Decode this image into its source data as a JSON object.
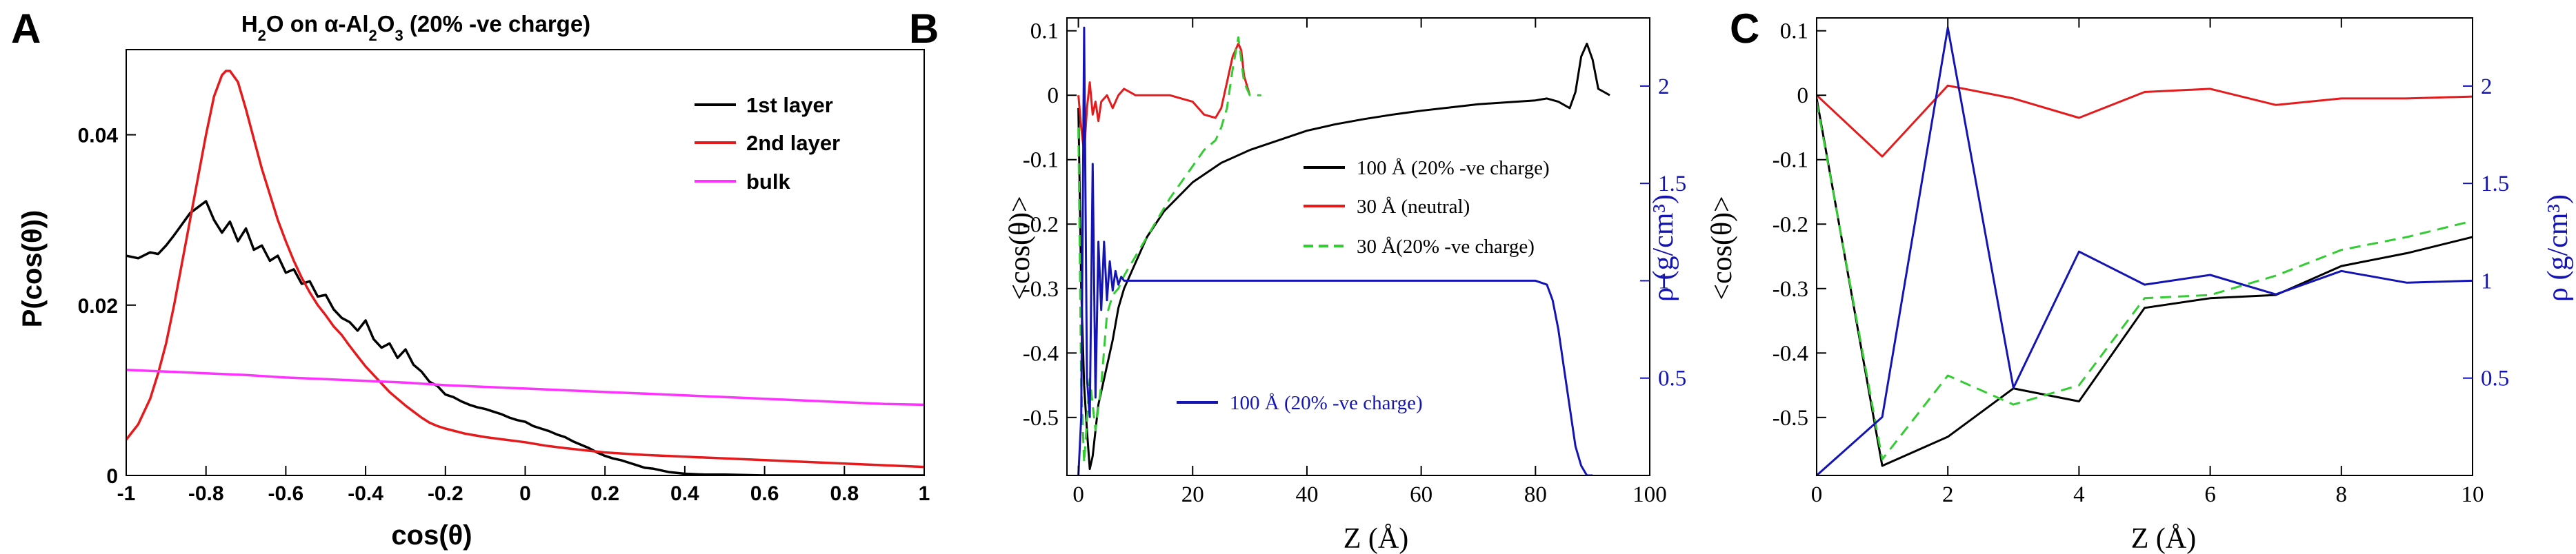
{
  "figure": {
    "panel_labels": [
      "A",
      "B",
      "C"
    ]
  },
  "colors": {
    "black": "#000000",
    "red": "#e41a1c",
    "magenta": "#ff33ff",
    "green": "#33cc33",
    "blue": "#1414b4"
  },
  "chart_data": [
    {
      "id": "A",
      "type": "line",
      "title_parts": [
        "H",
        "2",
        "O on ",
        "α",
        "-Al",
        "2",
        "O",
        "3",
        " (20% -ve charge)"
      ],
      "xlabel": "cos(θ)",
      "ylabel": "P(cos(θ))",
      "xlim": [
        -1,
        1
      ],
      "ylim": [
        0,
        0.05
      ],
      "xticks": [
        -1,
        -0.8,
        -0.6,
        -0.4,
        -0.2,
        0,
        0.2,
        0.4,
        0.6,
        0.8,
        1
      ],
      "xtick_labels": [
        "-1",
        "-0.8",
        "-0.6",
        "-0.4",
        "-0.2",
        "0",
        "0.2",
        "0.4",
        "0.6",
        "0.8",
        "1"
      ],
      "yticks": [
        0,
        0.02,
        0.04
      ],
      "ytick_labels": [
        "0",
        "0.02",
        "0.04"
      ],
      "legend_position": "top-right",
      "series": [
        {
          "name": "1st layer",
          "color": "#000000",
          "x": [
            -1,
            -0.97,
            -0.94,
            -0.92,
            -0.9,
            -0.88,
            -0.86,
            -0.84,
            -0.82,
            -0.8,
            -0.78,
            -0.76,
            -0.74,
            -0.72,
            -0.7,
            -0.68,
            -0.66,
            -0.64,
            -0.62,
            -0.6,
            -0.58,
            -0.56,
            -0.54,
            -0.52,
            -0.5,
            -0.48,
            -0.46,
            -0.44,
            -0.42,
            -0.4,
            -0.38,
            -0.36,
            -0.34,
            -0.32,
            -0.3,
            -0.28,
            -0.26,
            -0.24,
            -0.22,
            -0.2,
            -0.18,
            -0.16,
            -0.14,
            -0.12,
            -0.1,
            -0.08,
            -0.06,
            -0.04,
            -0.02,
            0,
            0.02,
            0.04,
            0.06,
            0.08,
            0.1,
            0.12,
            0.14,
            0.16,
            0.18,
            0.2,
            0.22,
            0.24,
            0.26,
            0.28,
            0.3,
            0.32,
            0.34,
            0.36,
            0.38,
            0.4,
            0.45,
            0.5,
            0.6,
            0.7,
            0.8,
            0.9,
            1.0
          ],
          "y": [
            0.0258,
            0.0255,
            0.0262,
            0.026,
            0.027,
            0.0282,
            0.0295,
            0.0308,
            0.0315,
            0.0322,
            0.03,
            0.0285,
            0.0298,
            0.0275,
            0.029,
            0.0265,
            0.027,
            0.0252,
            0.0258,
            0.0238,
            0.0242,
            0.0225,
            0.0228,
            0.021,
            0.0212,
            0.0195,
            0.0185,
            0.018,
            0.017,
            0.0182,
            0.016,
            0.015,
            0.0155,
            0.0138,
            0.0148,
            0.013,
            0.0122,
            0.011,
            0.0105,
            0.0095,
            0.0092,
            0.0087,
            0.0083,
            0.008,
            0.0078,
            0.0075,
            0.0072,
            0.0068,
            0.0065,
            0.0063,
            0.0058,
            0.0055,
            0.0052,
            0.0048,
            0.0045,
            0.004,
            0.0036,
            0.0032,
            0.0027,
            0.0023,
            0.002,
            0.0018,
            0.0015,
            0.0012,
            0.0009,
            0.0008,
            0.0006,
            0.0004,
            0.0003,
            0.0002,
            0.0001,
            0.0001,
            0.0,
            0.0,
            0.0,
            0.0,
            0.0
          ]
        },
        {
          "name": "2nd layer",
          "color": "#e41a1c",
          "x": [
            -1,
            -0.97,
            -0.94,
            -0.92,
            -0.9,
            -0.88,
            -0.86,
            -0.84,
            -0.82,
            -0.8,
            -0.78,
            -0.76,
            -0.75,
            -0.74,
            -0.72,
            -0.7,
            -0.68,
            -0.66,
            -0.64,
            -0.62,
            -0.6,
            -0.58,
            -0.56,
            -0.54,
            -0.52,
            -0.5,
            -0.48,
            -0.46,
            -0.44,
            -0.42,
            -0.4,
            -0.38,
            -0.36,
            -0.34,
            -0.32,
            -0.3,
            -0.28,
            -0.26,
            -0.24,
            -0.22,
            -0.2,
            -0.15,
            -0.1,
            -0.05,
            0,
            0.05,
            0.1,
            0.2,
            0.3,
            0.4,
            0.5,
            0.6,
            0.7,
            0.8,
            0.9,
            1.0
          ],
          "y": [
            0.0042,
            0.006,
            0.009,
            0.012,
            0.0155,
            0.02,
            0.025,
            0.03,
            0.035,
            0.04,
            0.0445,
            0.047,
            0.0475,
            0.0475,
            0.0462,
            0.043,
            0.0395,
            0.036,
            0.033,
            0.03,
            0.0275,
            0.0252,
            0.0232,
            0.0215,
            0.02,
            0.0188,
            0.0175,
            0.0165,
            0.0152,
            0.014,
            0.0128,
            0.0118,
            0.0108,
            0.0098,
            0.009,
            0.0082,
            0.0075,
            0.0068,
            0.0062,
            0.0058,
            0.0055,
            0.0049,
            0.0045,
            0.0042,
            0.0039,
            0.0035,
            0.0032,
            0.0027,
            0.0024,
            0.0022,
            0.002,
            0.0018,
            0.0016,
            0.0014,
            0.0012,
            0.001
          ]
        },
        {
          "name": "bulk",
          "color": "#ff33ff",
          "x": [
            -1,
            -0.9,
            -0.8,
            -0.7,
            -0.6,
            -0.5,
            -0.4,
            -0.3,
            -0.2,
            -0.1,
            0,
            0.1,
            0.2,
            0.3,
            0.4,
            0.5,
            0.6,
            0.7,
            0.8,
            0.9,
            1.0
          ],
          "y": [
            0.0124,
            0.0122,
            0.012,
            0.0118,
            0.0115,
            0.0113,
            0.0111,
            0.0109,
            0.0106,
            0.0104,
            0.0102,
            0.01,
            0.0098,
            0.0096,
            0.0094,
            0.0092,
            0.009,
            0.0088,
            0.0086,
            0.0084,
            0.0083
          ]
        }
      ]
    },
    {
      "id": "B",
      "type": "line",
      "xlabel": "Z (Å)",
      "ylabel": "<cos(θ)>",
      "ylabel_right": "ρ (g/cm³)",
      "xlim": [
        -2,
        100
      ],
      "ylim": [
        -0.59,
        0.12
      ],
      "ylim_right": [
        0.0,
        2.35
      ],
      "xticks": [
        0,
        20,
        40,
        60,
        80,
        100
      ],
      "xtick_labels": [
        "0",
        "20",
        "40",
        "60",
        "80",
        "100"
      ],
      "yticks": [
        0.1,
        0,
        -0.1,
        -0.2,
        -0.3,
        -0.4,
        -0.5
      ],
      "ytick_labels": [
        "0.1",
        "0",
        "-0.1",
        "-0.2",
        "-0.3",
        "-0.4",
        "-0.5"
      ],
      "yticks_right": [
        0.5,
        1,
        1.5,
        2
      ],
      "ytick_labels_right": [
        "0.5",
        "1",
        "1.5",
        "2"
      ],
      "legend": [
        "100 Å (20% -ve charge)",
        "30 Å (neutral)",
        "30 Å(20% -ve charge)"
      ],
      "legend_right": [
        "100 Å (20% -ve charge)"
      ],
      "series": [
        {
          "name": "100 Å (20% -ve charge)",
          "color": "#000000",
          "axis": "left",
          "x": [
            0,
            0.5,
            1,
            1.5,
            2,
            2.5,
            3,
            3.5,
            4,
            5,
            6,
            7,
            8,
            10,
            12,
            15,
            20,
            25,
            30,
            35,
            40,
            45,
            50,
            55,
            60,
            65,
            70,
            75,
            80,
            82,
            84,
            86,
            87,
            88,
            89,
            90,
            91,
            92,
            93
          ],
          "y": [
            -0.02,
            -0.3,
            -0.45,
            -0.52,
            -0.58,
            -0.56,
            -0.52,
            -0.48,
            -0.46,
            -0.42,
            -0.38,
            -0.33,
            -0.3,
            -0.26,
            -0.22,
            -0.18,
            -0.135,
            -0.105,
            -0.085,
            -0.07,
            -0.055,
            -0.045,
            -0.037,
            -0.03,
            -0.024,
            -0.019,
            -0.014,
            -0.011,
            -0.008,
            -0.005,
            -0.01,
            -0.02,
            0.005,
            0.06,
            0.08,
            0.055,
            0.01,
            0.005,
            0.0
          ]
        },
        {
          "name": "30 Å (neutral)",
          "color": "#e41a1c",
          "axis": "left",
          "x": [
            0,
            0.5,
            1,
            1.5,
            2,
            2.5,
            3,
            3.5,
            4,
            5,
            6,
            7,
            8,
            10,
            12,
            14,
            16,
            18,
            20,
            22,
            24,
            25,
            26,
            27,
            28,
            28.5,
            29,
            30
          ],
          "y": [
            0.0,
            -0.05,
            -0.09,
            -0.02,
            0.02,
            -0.03,
            -0.01,
            -0.04,
            -0.01,
            0.0,
            -0.02,
            0.0,
            0.01,
            0.0,
            0.0,
            0.0,
            0.0,
            -0.005,
            -0.01,
            -0.03,
            -0.035,
            -0.02,
            0.02,
            0.06,
            0.08,
            0.07,
            0.03,
            0.0
          ]
        },
        {
          "name": "30 Å(20% -ve charge)",
          "color": "#33cc33",
          "axis": "left",
          "dashed": true,
          "x": [
            0,
            0.5,
            1,
            2,
            3,
            4,
            5,
            6,
            7,
            8,
            10,
            12,
            14,
            16,
            18,
            20,
            22,
            24,
            25,
            26,
            27,
            28,
            29,
            30,
            31,
            32
          ],
          "y": [
            -0.05,
            -0.45,
            -0.57,
            -0.44,
            -0.52,
            -0.45,
            -0.34,
            -0.31,
            -0.3,
            -0.28,
            -0.25,
            -0.22,
            -0.19,
            -0.16,
            -0.135,
            -0.11,
            -0.085,
            -0.07,
            -0.05,
            -0.02,
            0.04,
            0.09,
            0.02,
            0.0,
            0.0,
            0.0
          ]
        },
        {
          "name": "100 Å (20% -ve charge) density",
          "color": "#1414b4",
          "axis": "right",
          "x": [
            0,
            0.5,
            1,
            1.5,
            2,
            2.5,
            3,
            3.5,
            4,
            4.5,
            5,
            5.5,
            6,
            6.5,
            7,
            7.5,
            8,
            9,
            10,
            20,
            30,
            40,
            50,
            60,
            70,
            80,
            82,
            83,
            84,
            85,
            86,
            87,
            88,
            89,
            90
          ],
          "y": [
            0.0,
            0.3,
            2.3,
            0.5,
            0.3,
            1.6,
            0.4,
            1.2,
            0.85,
            1.2,
            0.9,
            1.1,
            0.95,
            1.05,
            0.98,
            1.02,
            1.0,
            1.0,
            1.0,
            1.0,
            1.0,
            1.0,
            1.0,
            1.0,
            1.0,
            1.0,
            0.98,
            0.9,
            0.75,
            0.55,
            0.35,
            0.15,
            0.05,
            0.0,
            0.0
          ]
        }
      ]
    },
    {
      "id": "C",
      "type": "line",
      "xlabel": "Z (Å)",
      "ylabel": "<cos(θ)>",
      "ylabel_right": "ρ (g/cm³)",
      "xlim": [
        0,
        10
      ],
      "ylim": [
        -0.59,
        0.12
      ],
      "ylim_right": [
        0.0,
        2.35
      ],
      "xticks": [
        0,
        2,
        4,
        6,
        8,
        10
      ],
      "xtick_labels": [
        "0",
        "2",
        "4",
        "6",
        "8",
        "10"
      ],
      "yticks": [
        0.1,
        0,
        -0.1,
        -0.2,
        -0.3,
        -0.4,
        -0.5
      ],
      "ytick_labels": [
        "0.1",
        "0",
        "-0.1",
        "-0.2",
        "-0.3",
        "-0.4",
        "-0.5"
      ],
      "yticks_right": [
        0.5,
        1,
        1.5,
        2
      ],
      "ytick_labels_right": [
        "0.5",
        "1",
        "1.5",
        "2"
      ],
      "series": [
        {
          "name": "100 Å (20% -ve charge)",
          "color": "#000000",
          "axis": "left",
          "x": [
            0,
            1,
            2,
            3,
            4,
            5,
            6,
            7,
            8,
            9,
            10
          ],
          "y": [
            -0.005,
            -0.575,
            -0.53,
            -0.455,
            -0.475,
            -0.33,
            -0.315,
            -0.31,
            -0.265,
            -0.245,
            -0.22
          ]
        },
        {
          "name": "30 Å (neutral)",
          "color": "#e41a1c",
          "axis": "left",
          "x": [
            0,
            1,
            2,
            3,
            4,
            5,
            6,
            7,
            8,
            9,
            10
          ],
          "y": [
            0.0,
            -0.095,
            0.015,
            -0.005,
            -0.035,
            0.005,
            0.01,
            -0.015,
            -0.005,
            -0.005,
            -0.002
          ]
        },
        {
          "name": "30 Å(20% -ve charge)",
          "color": "#33cc33",
          "axis": "left",
          "dashed": true,
          "x": [
            0,
            1,
            2,
            3,
            4,
            5,
            6,
            7,
            8,
            9,
            10
          ],
          "y": [
            -0.01,
            -0.565,
            -0.435,
            -0.48,
            -0.45,
            -0.315,
            -0.31,
            -0.28,
            -0.24,
            -0.22,
            -0.195
          ]
        },
        {
          "name": "100 Å (20% -ve charge) density",
          "color": "#1414b4",
          "axis": "right",
          "x": [
            0,
            1,
            2,
            3,
            4,
            5,
            6,
            7,
            8,
            9,
            10
          ],
          "y": [
            0.0,
            0.3,
            2.3,
            0.45,
            1.15,
            0.98,
            1.03,
            0.93,
            1.05,
            0.99,
            1.0
          ]
        }
      ]
    }
  ]
}
